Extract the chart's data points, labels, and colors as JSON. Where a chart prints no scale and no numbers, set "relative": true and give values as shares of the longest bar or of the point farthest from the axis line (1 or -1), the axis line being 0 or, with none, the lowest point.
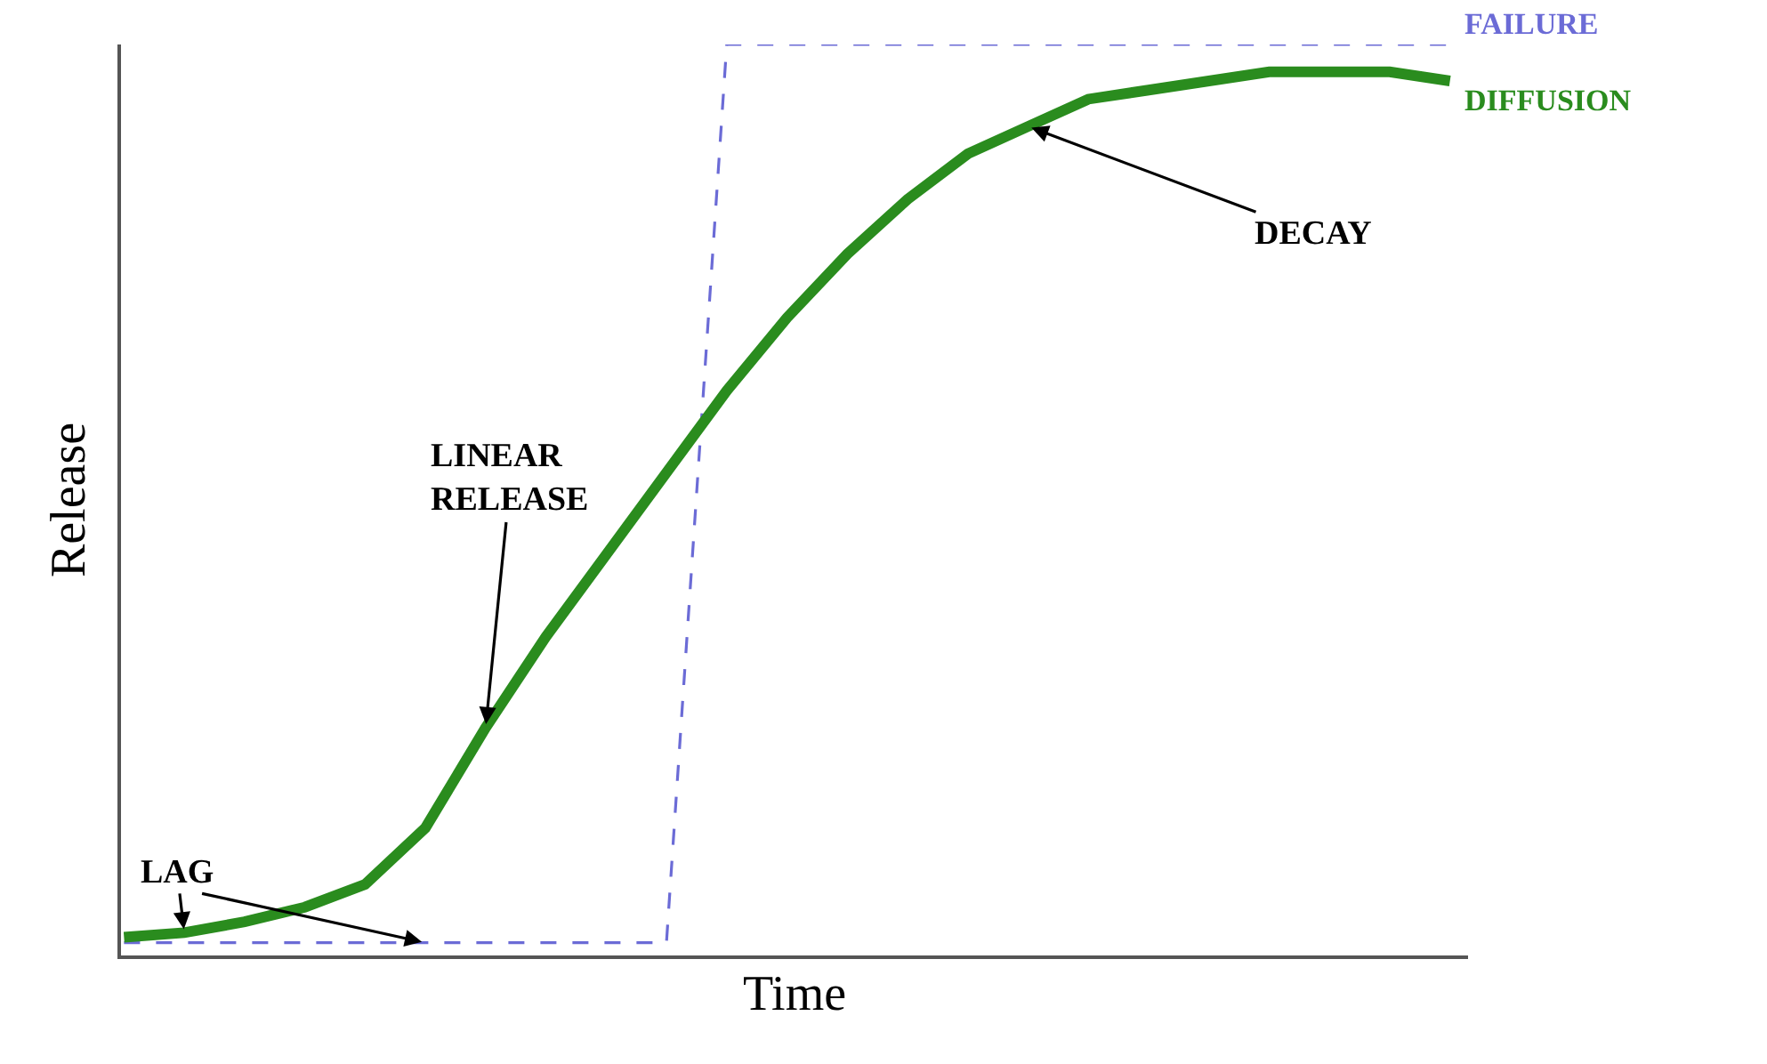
{
  "chart_data": {
    "type": "line",
    "relative": true,
    "xlabel": "Time",
    "ylabel": "Release",
    "legend": false,
    "categories": [
      null,
      null,
      null,
      null,
      null,
      null,
      null,
      null,
      null,
      null,
      null,
      null,
      null,
      null,
      null,
      null,
      null,
      null,
      null,
      null,
      null,
      null,
      null
    ],
    "series": [
      {
        "name": "FAILURE",
        "color": "#6b6bd6",
        "line_style": "dashed",
        "values": [
          0.014,
          0.014,
          0.014,
          0.014,
          0.014,
          0.014,
          0.014,
          0.014,
          0.014,
          0.014,
          1.0,
          1.0,
          1.0,
          1.0,
          1.0,
          1.0,
          1.0,
          1.0,
          1.0,
          1.0,
          1.0,
          1.0,
          1.0
        ]
      },
      {
        "name": "DIFFUSION",
        "color": "#2a8c1e",
        "line_style": "solid",
        "values": [
          0.02,
          0.025,
          0.037,
          0.053,
          0.078,
          0.14,
          0.25,
          0.35,
          0.44,
          0.53,
          0.62,
          0.7,
          0.77,
          0.83,
          0.88,
          0.91,
          0.94,
          0.95,
          0.96,
          0.97,
          0.97,
          0.97,
          0.96
        ]
      }
    ],
    "annotations": [
      "LAG",
      "LINEAR RELEASE",
      "DECAY"
    ]
  }
}
